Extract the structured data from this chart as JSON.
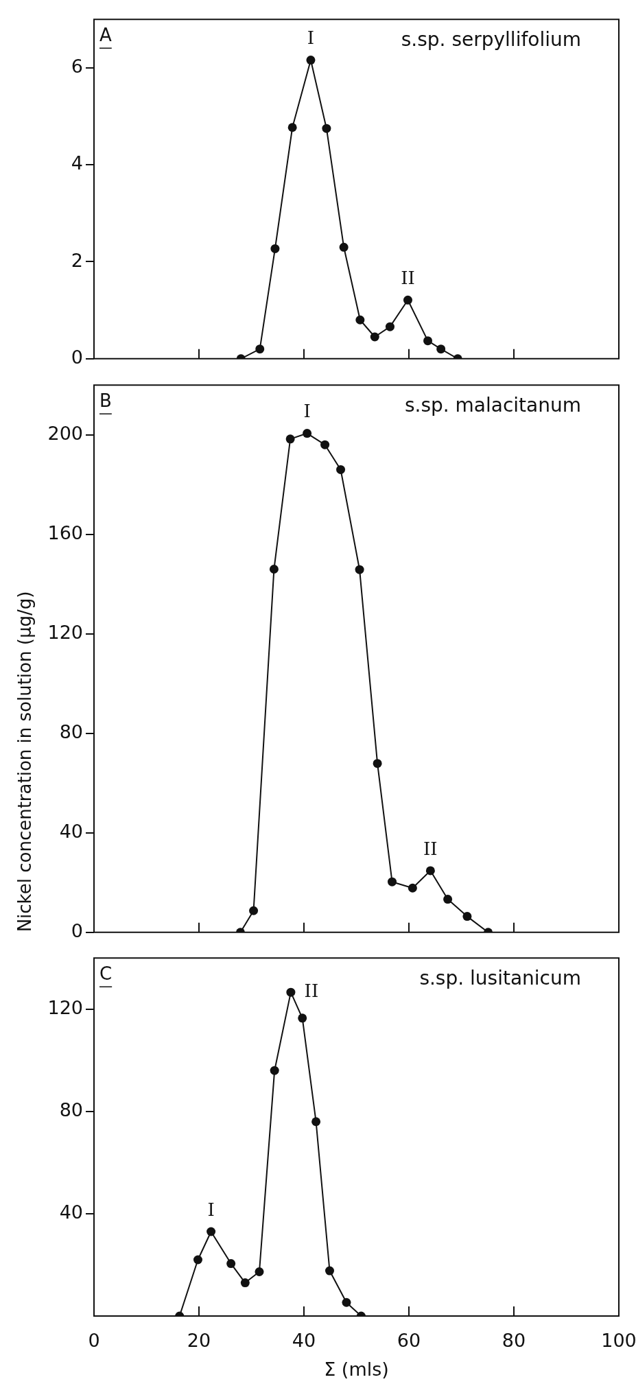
{
  "chart_data": [
    {
      "type": "line",
      "title": "s.sp. serpyllifolium",
      "annotations": [
        "A",
        {
          "text": "I",
          "x": 41.3,
          "y": 6.16
        },
        {
          "text": "II",
          "x": 59.8,
          "y": 1.21
        }
      ],
      "x": [
        28.0,
        31.6,
        34.5,
        37.8,
        41.3,
        44.3,
        47.6,
        50.7,
        53.5,
        56.4,
        59.8,
        63.6,
        66.1,
        69.3
      ],
      "values": [
        0,
        0.2,
        2.27,
        4.77,
        6.16,
        4.75,
        2.3,
        0.8,
        0.45,
        0.66,
        1.21,
        0.37,
        0.2,
        0
      ],
      "color": "#111111",
      "marker": "circle",
      "xlim": [
        0,
        100
      ],
      "xticks": [
        0,
        20,
        40,
        60,
        80,
        100
      ],
      "ylim": [
        0,
        7
      ],
      "yticks": [
        0,
        2,
        4,
        6
      ],
      "tick_labels": "y"
    },
    {
      "type": "line",
      "title": "s.sp. malacitanum",
      "ylabel": "Nickel concentration in solution (µg/g)",
      "annotations": [
        "B",
        {
          "text": "I",
          "x": 40.6,
          "y": 200.6
        },
        {
          "text": "II",
          "x": 64.1,
          "y": 24.8
        }
      ],
      "x": [
        27.9,
        30.4,
        34.3,
        37.4,
        40.6,
        44.0,
        47.0,
        50.6,
        54.0,
        56.8,
        60.7,
        64.1,
        67.4,
        71.1,
        75.1
      ],
      "values": [
        0,
        8.7,
        146,
        198.3,
        200.6,
        196,
        186,
        145.8,
        67.9,
        20.3,
        17.8,
        24.8,
        13.3,
        6.4,
        0
      ],
      "color": "#111111",
      "marker": "circle",
      "xlim": [
        0,
        100
      ],
      "xticks": [
        0,
        20,
        40,
        60,
        80,
        100
      ],
      "ylim": [
        0,
        220
      ],
      "yticks": [
        0,
        40,
        80,
        120,
        160,
        200
      ],
      "tick_labels": "y"
    },
    {
      "type": "line",
      "title": "s.sp. lusitanicum",
      "xlabel": "Σ (mls)",
      "annotations": [
        "C",
        {
          "text": "I",
          "x": 22.3,
          "y": 33
        },
        {
          "text": "II",
          "x": 37.5,
          "y": 126.6
        }
      ],
      "x": [
        16.3,
        19.8,
        22.3,
        26.1,
        28.8,
        31.5,
        34.4,
        37.5,
        39.7,
        42.3,
        44.9,
        48.1,
        50.9
      ],
      "values": [
        0,
        22,
        33,
        20.5,
        13,
        17.3,
        96,
        126.6,
        116.5,
        76,
        17.7,
        5.3,
        0
      ],
      "color": "#111111",
      "marker": "circle",
      "xlim": [
        0,
        100
      ],
      "xticks": [
        0,
        20,
        40,
        60,
        80,
        100
      ],
      "ylim": [
        0,
        140
      ],
      "yticks": [
        40,
        80,
        120
      ]
    }
  ]
}
